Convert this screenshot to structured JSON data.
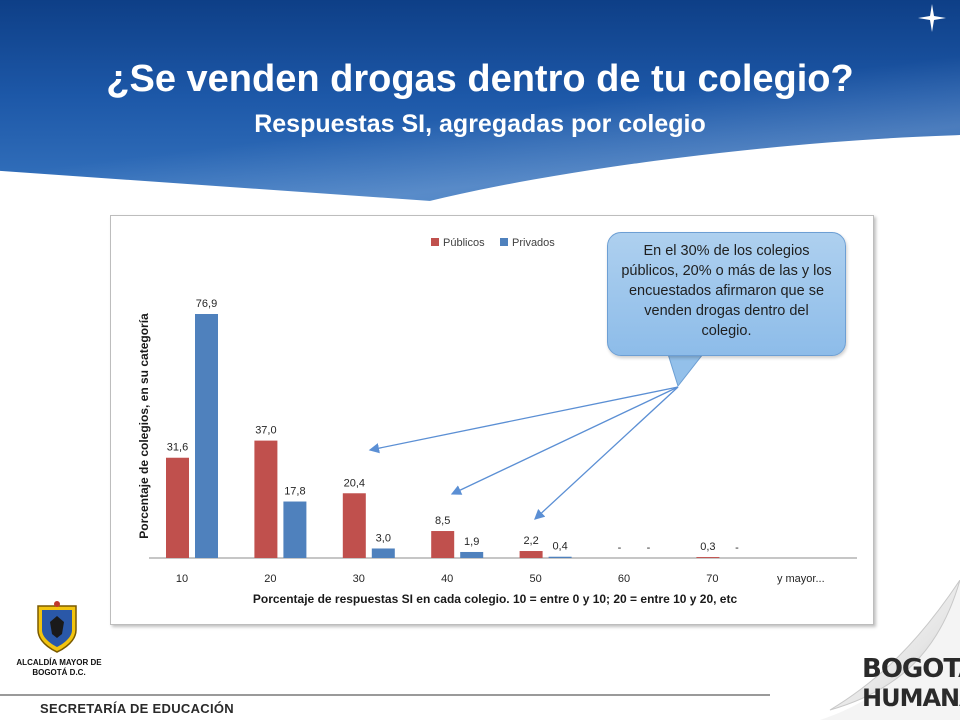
{
  "slide": {
    "title": "¿Se venden drogas dentro de tu colegio?",
    "subtitle": "Respuestas SI, agregadas por colegio"
  },
  "callout": {
    "text": "En el 30% de los colegios públicos, 20% o más de las y los encuestados afirmaron que se venden drogas dentro del colegio."
  },
  "footer": {
    "alcaldia": "ALCALDÍA MAYOR DE BOGOTÁ D.C.",
    "secretaria": "SECRETARÍA DE EDUCACIÓN",
    "logo_top": "BOGOTÁ",
    "logo_bottom": "HUMANA"
  },
  "colors": {
    "publicos": "#c0504d",
    "privados": "#4f81bd",
    "header_blue": "#1d58a8",
    "arrow": "#5b8fd4"
  },
  "chart_data": {
    "type": "bar",
    "xlabel": "Porcentaje de respuestas SI en cada colegio. 10 = entre 0 y 10; 20 = entre 10 y 20, etc",
    "ylabel": "Porcentaje  de colegios, en su categoría",
    "categories": [
      "10",
      "20",
      "30",
      "40",
      "50",
      "60",
      "70",
      "y mayor..."
    ],
    "series": [
      {
        "name": "Públicos",
        "values": [
          31.6,
          37.0,
          20.4,
          8.5,
          2.2,
          0,
          0.3,
          0
        ],
        "labels": [
          "31,6",
          "37,0",
          "20,4",
          "8,5",
          "2,2",
          "-",
          "0,3",
          ""
        ]
      },
      {
        "name": "Privados",
        "values": [
          76.9,
          17.8,
          3.0,
          1.9,
          0.4,
          0,
          0,
          0
        ],
        "labels": [
          "76,9",
          "17,8",
          "3,0",
          "1,9",
          "0,4",
          "-",
          "-",
          ""
        ]
      }
    ],
    "ylim": [
      0,
      90
    ],
    "legend": "top",
    "grid": false
  }
}
